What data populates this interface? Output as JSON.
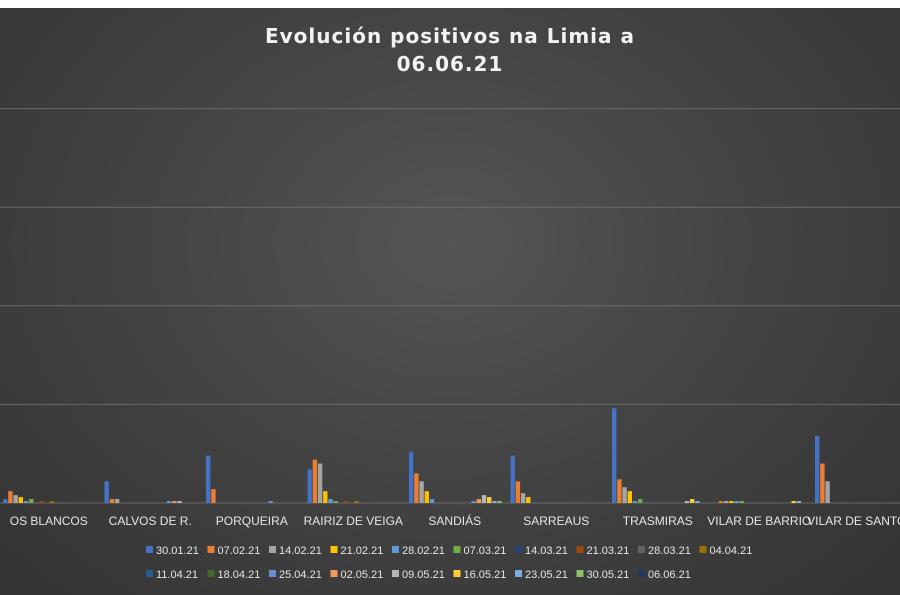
{
  "chart_data": {
    "type": "bar",
    "title_line1": "Evolución positivos na Limia a",
    "title_line2": "06.06.21",
    "categories": [
      "OS BLANCOS",
      "CALVOS DE R.",
      "PORQUEIRA",
      "RAIRIZ DE VEIGA",
      "SANDIÁS",
      "SARREAUS",
      "TRASMIRAS",
      "VILAR DE BARRIO",
      "VILAR DE SANTOS"
    ],
    "ylim": [
      0,
      250
    ],
    "grid": true,
    "legend_position": "bottom",
    "series": [
      {
        "name": "30.01.21",
        "color": "#4472c4",
        "values": [
          2,
          11,
          24,
          17,
          26,
          24,
          48,
          0,
          34
        ]
      },
      {
        "name": "07.02.21",
        "color": "#ed7d31",
        "values": [
          6,
          2,
          7,
          22,
          15,
          11,
          12,
          1,
          20
        ]
      },
      {
        "name": "14.02.21",
        "color": "#a5a5a5",
        "values": [
          4,
          2,
          0,
          20,
          11,
          5,
          8,
          1,
          11
        ]
      },
      {
        "name": "21.02.21",
        "color": "#ffc000",
        "values": [
          3,
          0,
          0,
          6,
          6,
          3,
          6,
          1,
          0
        ]
      },
      {
        "name": "28.02.21",
        "color": "#5b9bd5",
        "values": [
          1,
          0,
          0,
          2,
          2,
          0,
          1,
          1,
          0
        ]
      },
      {
        "name": "07.03.21",
        "color": "#70ad47",
        "values": [
          2,
          0,
          0,
          1,
          0,
          0,
          2,
          1,
          0
        ]
      },
      {
        "name": "14.03.21",
        "color": "#264478",
        "values": [
          0,
          0,
          0,
          0,
          0,
          0,
          0,
          0,
          0
        ]
      },
      {
        "name": "21.03.21",
        "color": "#9e480e",
        "values": [
          1,
          0,
          0,
          1,
          0,
          0,
          0,
          0,
          0
        ]
      },
      {
        "name": "28.03.21",
        "color": "#636363",
        "values": [
          0,
          0,
          0,
          0,
          0,
          0,
          0,
          0,
          0
        ]
      },
      {
        "name": "04.04.21",
        "color": "#997300",
        "values": [
          1,
          0,
          0,
          1,
          0,
          0,
          0,
          0,
          0
        ]
      },
      {
        "name": "11.04.21",
        "color": "#255e91",
        "values": [
          0,
          0,
          0,
          0,
          0,
          0,
          0,
          0,
          0
        ]
      },
      {
        "name": "18.04.21",
        "color": "#43682b",
        "values": [
          0,
          0,
          0,
          0,
          0,
          0,
          0,
          0,
          0
        ]
      },
      {
        "name": "25.04.21",
        "color": "#698ed0",
        "values": [
          0,
          1,
          1,
          0,
          1,
          0,
          0,
          0,
          0
        ]
      },
      {
        "name": "02.05.21",
        "color": "#f1975a",
        "values": [
          0,
          1,
          0,
          0,
          2,
          0,
          0,
          0,
          0
        ]
      },
      {
        "name": "09.05.21",
        "color": "#b7b7b7",
        "values": [
          0,
          1,
          0,
          0,
          4,
          0,
          1,
          0,
          0
        ]
      },
      {
        "name": "16.05.21",
        "color": "#ffcd33",
        "values": [
          0,
          0,
          0,
          0,
          3,
          0,
          2,
          1,
          0
        ]
      },
      {
        "name": "23.05.21",
        "color": "#7cafdd",
        "values": [
          0,
          0,
          0,
          0,
          1,
          0,
          1,
          1,
          0
        ]
      },
      {
        "name": "30.05.21",
        "color": "#8cc168",
        "values": [
          0,
          0,
          0,
          0,
          1,
          0,
          0,
          0,
          0
        ]
      },
      {
        "name": "06.06.21",
        "color": "#1f3864",
        "values": [
          0,
          0,
          0,
          0,
          0,
          0,
          0,
          0,
          0
        ]
      }
    ]
  }
}
